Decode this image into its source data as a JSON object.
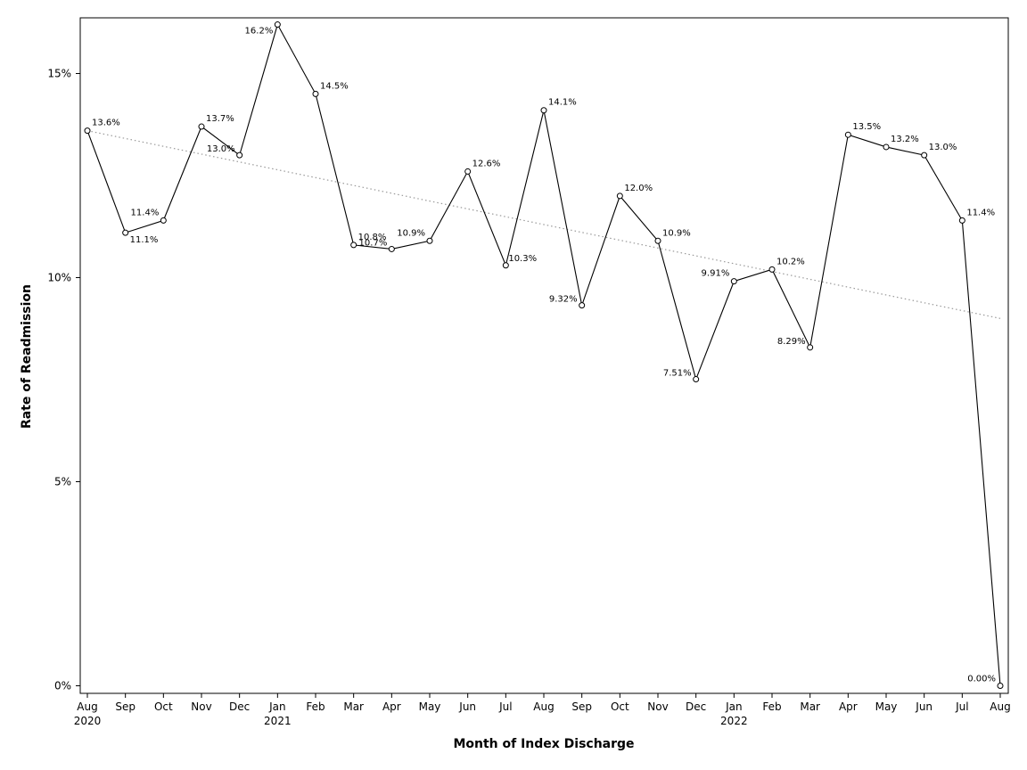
{
  "chart_data": {
    "type": "line",
    "xlabel": "Month of Index Discharge",
    "ylabel": "Rate of Readmission",
    "ylim": [
      0,
      16.5
    ],
    "y_ticks": [
      {
        "value": 0,
        "label": "0%"
      },
      {
        "value": 5,
        "label": "5%"
      },
      {
        "value": 10,
        "label": "10%"
      },
      {
        "value": 15,
        "label": "15%"
      }
    ],
    "categories": [
      "Aug",
      "Sep",
      "Oct",
      "Nov",
      "Dec",
      "Jan",
      "Feb",
      "Mar",
      "Apr",
      "May",
      "Jun",
      "Jul",
      "Aug",
      "Sep",
      "Oct",
      "Nov",
      "Dec",
      "Jan",
      "Feb",
      "Mar",
      "Apr",
      "May",
      "Jun",
      "Jul",
      "Aug"
    ],
    "year_labels": [
      "2020",
      "",
      "",
      "",
      "",
      "2021",
      "",
      "",
      "",
      "",
      "",
      "",
      "",
      "",
      "",
      "",
      "",
      "2022",
      "",
      "",
      "",
      "",
      "",
      "",
      ""
    ],
    "series": [
      {
        "values": [
          13.6,
          11.1,
          11.4,
          13.7,
          13.0,
          16.2,
          14.5,
          10.8,
          10.7,
          10.9,
          12.6,
          10.3,
          14.1,
          9.32,
          12.0,
          10.9,
          7.51,
          9.91,
          10.2,
          8.29,
          13.5,
          13.2,
          13.0,
          11.4,
          0.0
        ],
        "labels": [
          "13.6%",
          "11.1%",
          "11.4%",
          "13.7%",
          "13.0%",
          "16.2%",
          "14.5%",
          "10.8%",
          "10.7%",
          "10.9%",
          "12.6%",
          "10.3%",
          "14.1%",
          "9.32%",
          "12.0%",
          "10.9%",
          "7.51%",
          "9.91%",
          "10.2%",
          "8.29%",
          "13.5%",
          "13.2%",
          "13.0%",
          "11.4%",
          "0.00%"
        ],
        "color": "#000000"
      }
    ],
    "trendline": {
      "start": 13.6,
      "end": 9.0,
      "color": "#999999",
      "style": "dotted"
    },
    "grid": false,
    "legend": "none"
  }
}
